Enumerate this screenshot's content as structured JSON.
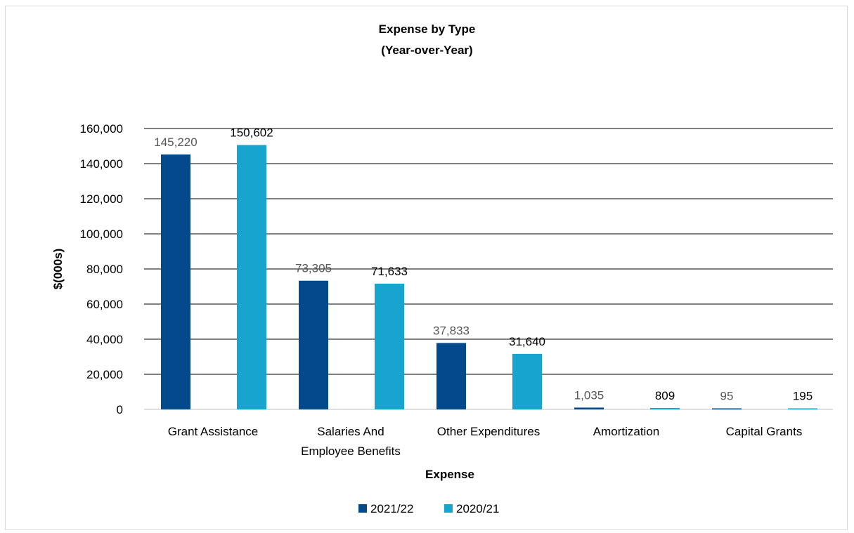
{
  "chart_data": {
    "type": "bar",
    "title": "Expense by Type",
    "subtitle": "(Year-over-Year)",
    "xlabel": "Expense",
    "ylabel": "$(000s)",
    "ylim": [
      0,
      160000
    ],
    "yticks": [
      0,
      20000,
      40000,
      60000,
      80000,
      100000,
      120000,
      140000,
      160000
    ],
    "ytick_labels": [
      "0",
      "20,000",
      "40,000",
      "60,000",
      "80,000",
      "100,000",
      "120,000",
      "140,000",
      "160,000"
    ],
    "categories": [
      [
        "Grant Assistance"
      ],
      [
        "Salaries And",
        "Employee Benefits"
      ],
      [
        "Other Expenditures"
      ],
      [
        "Amortization"
      ],
      [
        "Capital Grants"
      ]
    ],
    "series": [
      {
        "name": "2021/22",
        "color": "#034a8c",
        "label_color": "#595959",
        "values": [
          145220,
          73305,
          37833,
          1035,
          95
        ],
        "labels": [
          "145,220",
          "73,305",
          "37,833",
          "1,035",
          "95"
        ]
      },
      {
        "name": "2020/21",
        "color": "#17a5cf",
        "label_color": "#000000",
        "values": [
          150602,
          71633,
          31640,
          809,
          195
        ],
        "labels": [
          "150,602",
          "71,633",
          "31,640",
          "809",
          "195"
        ]
      }
    ],
    "grid": true,
    "legend": "bottom"
  }
}
